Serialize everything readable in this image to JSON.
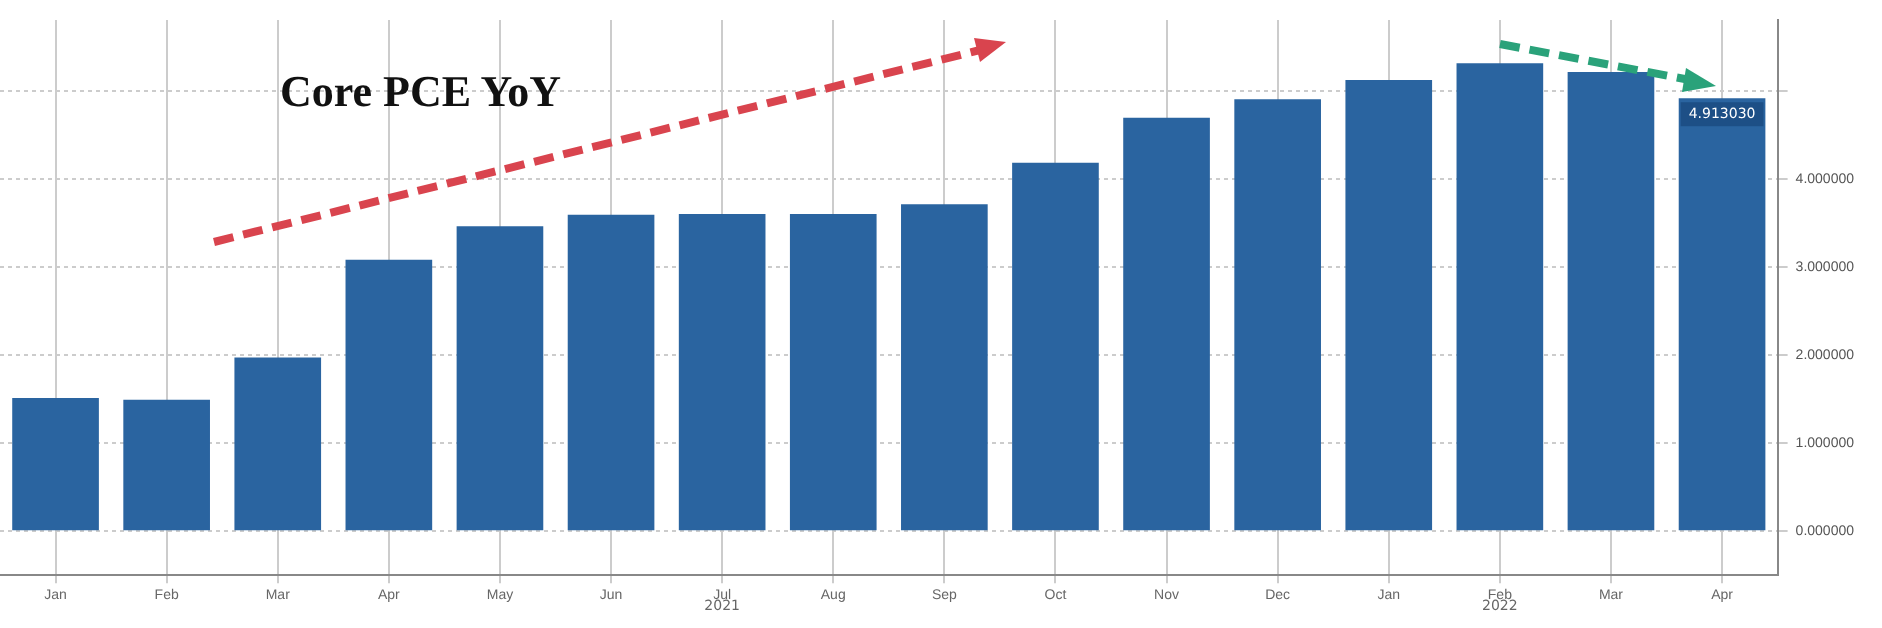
{
  "chart_data": {
    "type": "bar",
    "title": "Core PCE YoY",
    "categories": [
      "Jan",
      "Feb",
      "Mar",
      "Apr",
      "May",
      "Jun",
      "Jul",
      "Aug",
      "Sep",
      "Oct",
      "Nov",
      "Dec",
      "Jan",
      "Feb",
      "Mar",
      "Apr"
    ],
    "values": [
      1.51,
      1.49,
      1.97,
      3.08,
      3.46,
      3.59,
      3.6,
      3.6,
      3.71,
      4.18,
      4.69,
      4.9,
      5.12,
      5.31,
      5.21,
      4.91303
    ],
    "value_labels": [
      null,
      null,
      null,
      null,
      null,
      null,
      null,
      null,
      null,
      null,
      null,
      null,
      null,
      null,
      null,
      "4.913030"
    ],
    "color": "#2a64a0",
    "ylim": [
      -0.5,
      5.8
    ],
    "yticks": [
      {
        "value": 0,
        "label": "0.000000"
      },
      {
        "value": 1,
        "label": "1.000000"
      },
      {
        "value": 2,
        "label": "2.000000"
      },
      {
        "value": 3,
        "label": "3.000000"
      },
      {
        "value": 4,
        "label": "4.000000"
      },
      {
        "value": 5,
        "label": null
      }
    ],
    "annotations": [
      "2021",
      "2022"
    ],
    "grid": true,
    "legend": false
  }
}
